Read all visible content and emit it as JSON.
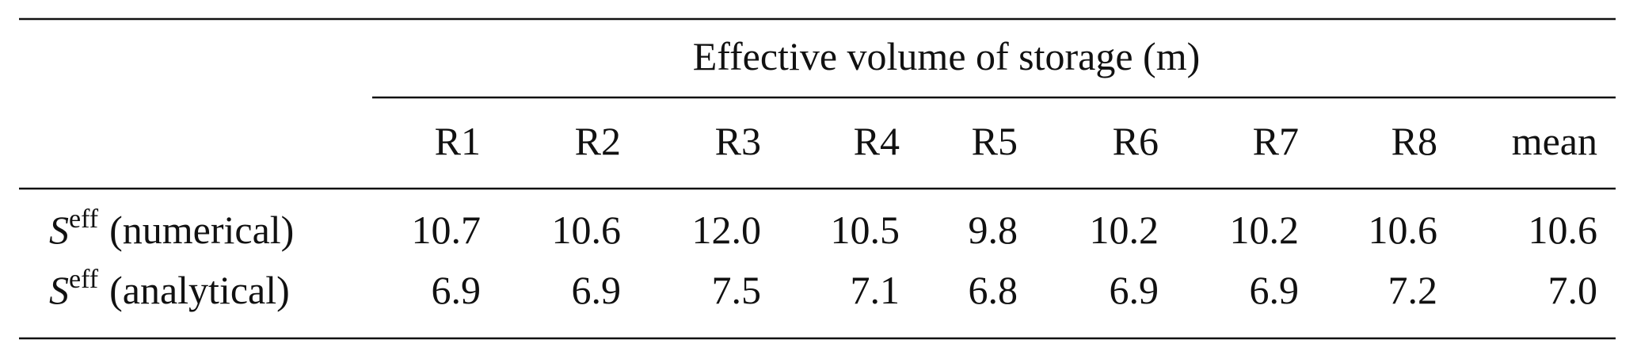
{
  "table": {
    "spanning_header": "Effective volume of storage (m)",
    "columns": [
      "R1",
      "R2",
      "R3",
      "R4",
      "R5",
      "R6",
      "R7",
      "R8",
      "mean"
    ],
    "rows": [
      {
        "label": {
          "symbol": "S",
          "superscript": "eff",
          "text": "(numerical)"
        },
        "cells": [
          "10.7",
          "10.6",
          "12.0",
          "10.5",
          "9.8",
          "10.2",
          "10.2",
          "10.6",
          "10.6"
        ]
      },
      {
        "label": {
          "symbol": "S",
          "superscript": "eff",
          "text": "(analytical)"
        },
        "cells": [
          "6.9",
          "6.9",
          "7.5",
          "7.1",
          "6.8",
          "6.9",
          "6.9",
          "7.2",
          "7.0"
        ]
      }
    ]
  }
}
